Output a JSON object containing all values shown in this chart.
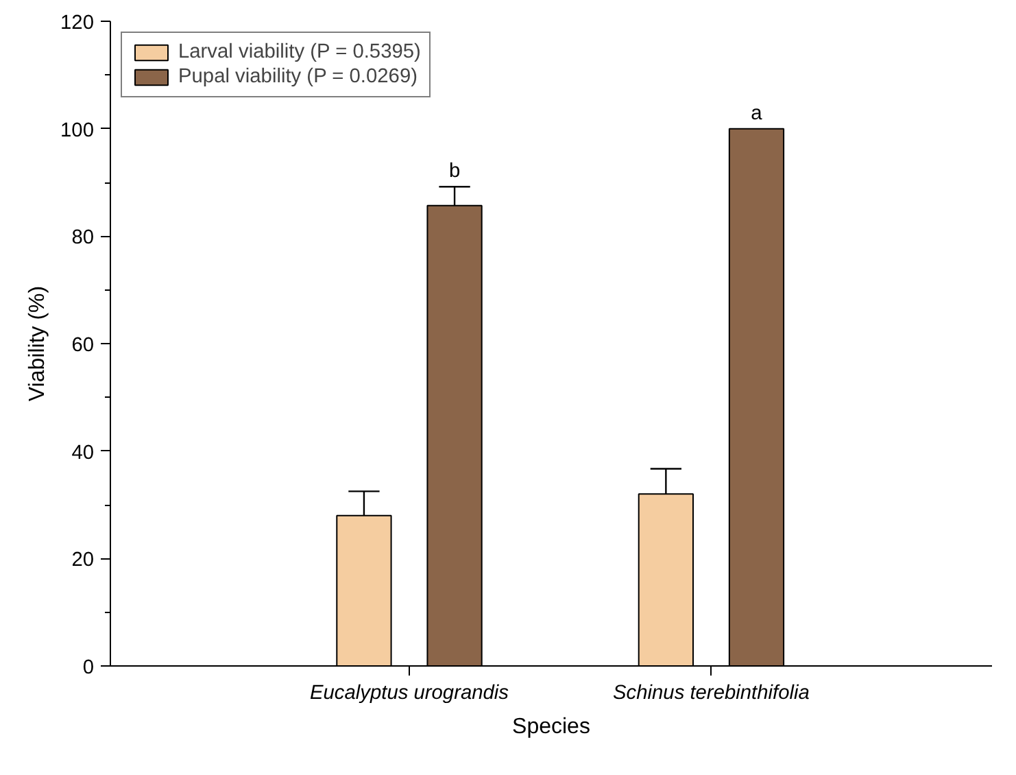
{
  "chart_data": {
    "type": "bar",
    "xlabel": "Species",
    "ylabel": "Viability (%)",
    "categories": [
      "Eucalyptus urograndis",
      "Schinus terebinthifolia"
    ],
    "series": [
      {
        "name": "Larval viability (P = 0.5395)",
        "color": "#f5cda0",
        "values": [
          28,
          32
        ],
        "errors": [
          [
            28,
            32.5
          ],
          [
            32,
            36.7
          ]
        ]
      },
      {
        "name": "Pupal viability (P = 0.0269)",
        "color": "#8b6549",
        "values": [
          85.7,
          100
        ],
        "errors": [
          [
            85.7,
            89.2
          ],
          null
        ]
      }
    ],
    "annotations": [
      "b",
      "a"
    ],
    "ylim": [
      0,
      120
    ],
    "yticks": [
      0,
      20,
      40,
      60,
      80,
      100,
      120
    ],
    "grid": false,
    "legend": "top left"
  }
}
